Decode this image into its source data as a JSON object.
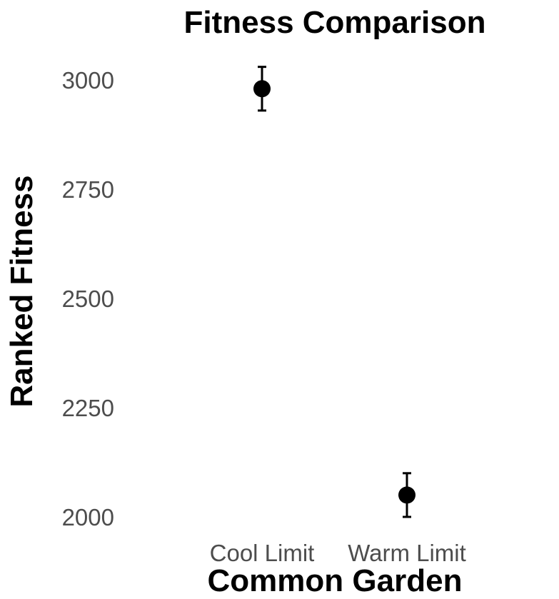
{
  "chart_data": {
    "type": "scatter",
    "title": "Fitness Comparison",
    "xlabel": "Common Garden",
    "ylabel": "Ranked Fitness",
    "categories": [
      "Cool Limit",
      "Warm Limit"
    ],
    "series": [
      {
        "values": [
          2980,
          2050
        ],
        "error_low": [
          2930,
          2000
        ],
        "error_high": [
          3030,
          2100
        ]
      }
    ],
    "yticks": [
      2000,
      2250,
      2500,
      2750,
      3000
    ],
    "ylim": [
      1950,
      3040
    ],
    "grid": false,
    "legend": "none",
    "point_color": "#000000"
  }
}
